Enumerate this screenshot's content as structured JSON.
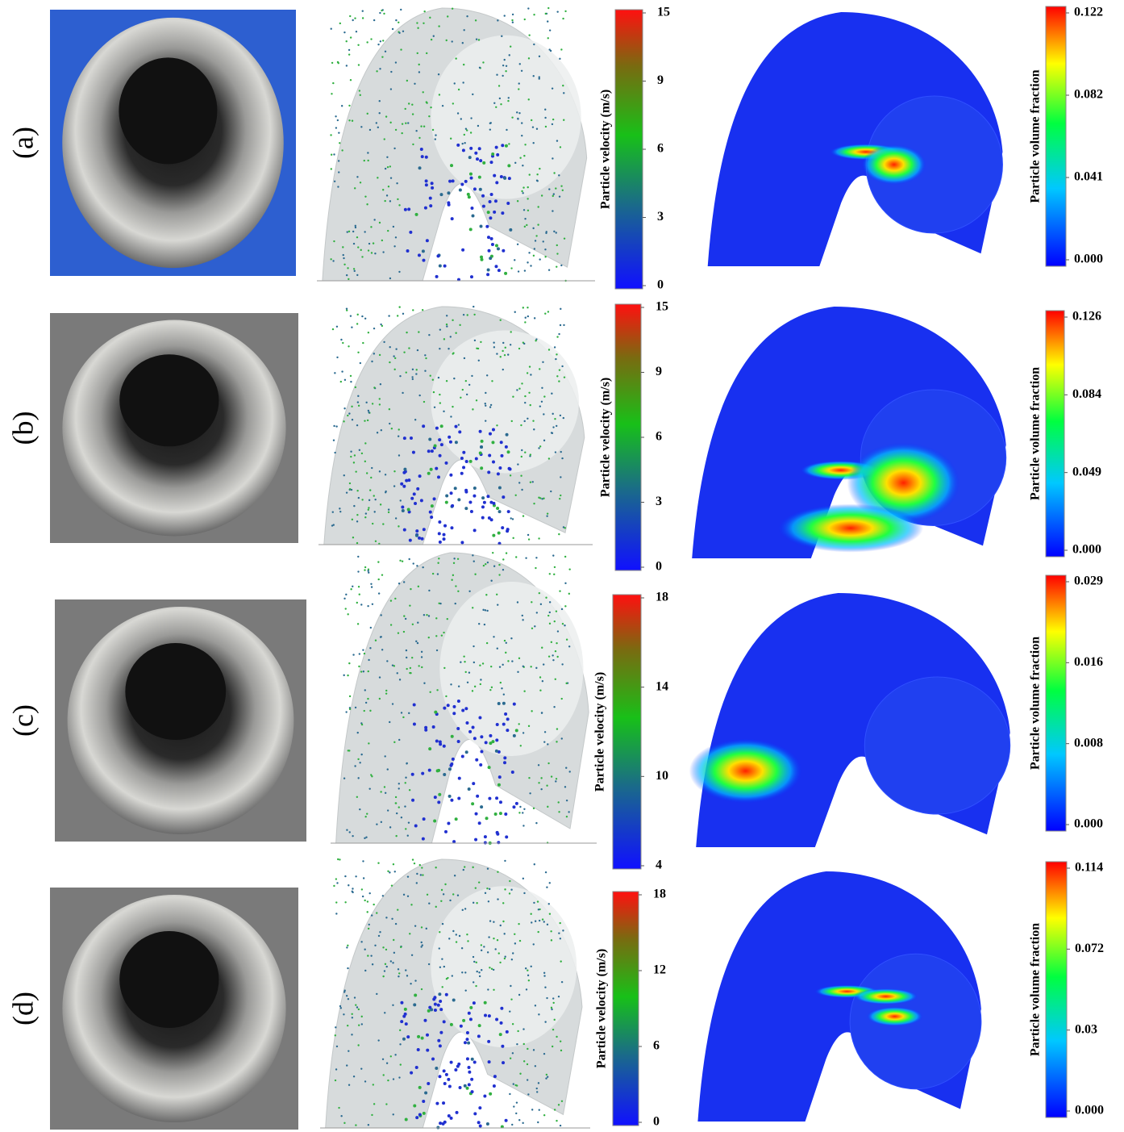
{
  "rows": [
    {
      "label": "(a)",
      "velocity_bar": {
        "title": "Particle velocity (m/s)",
        "ticks": [
          15,
          9,
          6,
          3,
          0
        ]
      },
      "fraction_bar": {
        "title": "Particle volume fraction",
        "ticks": [
          0.122,
          0.082,
          0.041,
          {
            "value": 0,
            "label": "0.000"
          }
        ]
      }
    },
    {
      "label": "(b)",
      "velocity_bar": {
        "title": "Particle velocity (m/s)",
        "ticks": [
          15,
          9,
          6,
          3,
          0
        ]
      },
      "fraction_bar": {
        "title": "Particle volume fraction",
        "ticks": [
          0.126,
          0.084,
          0.049,
          {
            "value": 0,
            "label": "0.000"
          }
        ]
      }
    },
    {
      "label": "(c)",
      "velocity_bar": {
        "title": "Particle velocity (m/s)",
        "ticks": [
          18,
          14,
          10,
          4
        ]
      },
      "fraction_bar": {
        "title": "Particle volume fraction",
        "ticks": [
          0.029,
          0.016,
          0.008,
          {
            "value": 0,
            "label": "0.000"
          }
        ]
      }
    },
    {
      "label": "(d)",
      "velocity_bar": {
        "title": "Particle velocity (m/s)",
        "ticks": [
          18,
          12,
          6,
          0
        ]
      },
      "fraction_bar": {
        "title": "Particle volume fraction",
        "ticks": [
          0.114,
          0.072,
          0.03,
          {
            "value": 0,
            "label": "0.000"
          }
        ]
      }
    }
  ]
}
